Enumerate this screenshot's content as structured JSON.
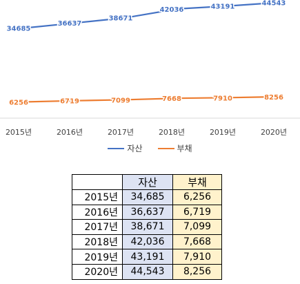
{
  "chart_data": {
    "type": "line",
    "categories": [
      "2015년",
      "2016년",
      "2017년",
      "2018년",
      "2019년",
      "2020년"
    ],
    "series": [
      {
        "name": "자산",
        "values": [
          34685,
          36637,
          38671,
          42036,
          43191,
          44543
        ],
        "color": "#4472C4"
      },
      {
        "name": "부채",
        "values": [
          6256,
          6719,
          7099,
          7668,
          7910,
          8256
        ],
        "color": "#ED7D31"
      }
    ],
    "title": "",
    "xlabel": "",
    "ylabel": "",
    "ylim": [
      0,
      50000
    ],
    "grid": false,
    "legend_position": "bottom",
    "data_labels": true,
    "axis_color": "#d9d9d9",
    "label_color": "#404040"
  },
  "table": {
    "headers": [
      "",
      "자산",
      "부채"
    ],
    "rows": [
      [
        "2015년",
        "34,685",
        "6,256"
      ],
      [
        "2016년",
        "36,637",
        "6,719"
      ],
      [
        "2017년",
        "38,671",
        "7,099"
      ],
      [
        "2018년",
        "42,036",
        "7,668"
      ],
      [
        "2019년",
        "43,191",
        "7,910"
      ],
      [
        "2020년",
        "44,543",
        "8,256"
      ]
    ]
  }
}
